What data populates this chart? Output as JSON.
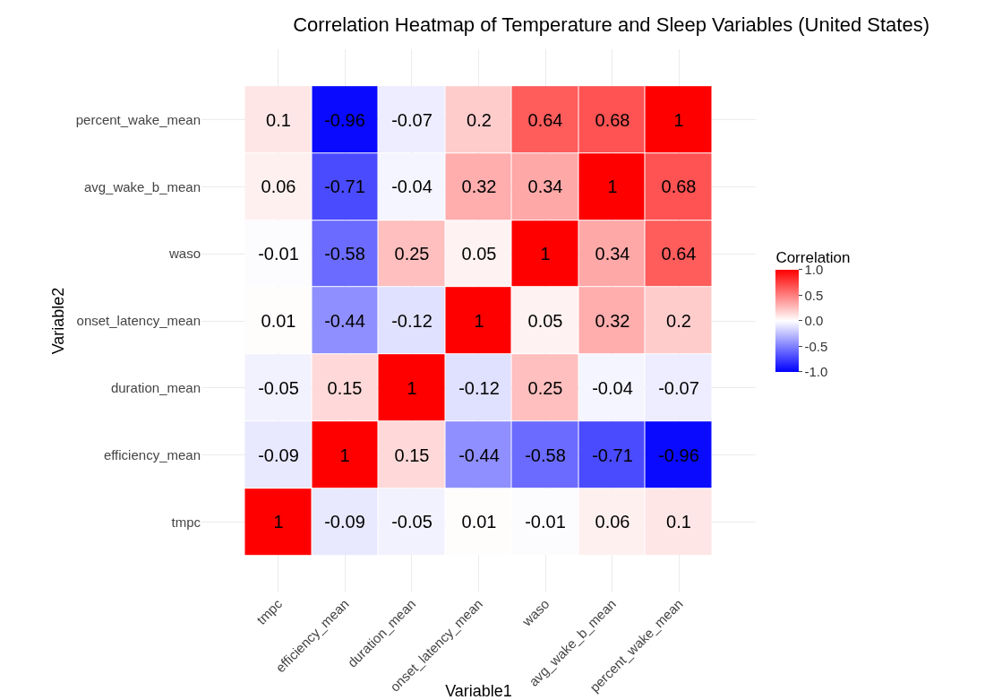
{
  "chart_data": {
    "type": "heatmap",
    "title": "Correlation Heatmap of Temperature and Sleep Variables (United States)",
    "xlabel": "Variable1",
    "ylabel": "Variable2",
    "clabel": "Correlation",
    "categories": [
      "tmpc",
      "efficiency_mean",
      "duration_mean",
      "onset_latency_mean",
      "waso",
      "avg_wake_b_mean",
      "percent_wake_mean"
    ],
    "y_categories": [
      "percent_wake_mean",
      "avg_wake_b_mean",
      "waso",
      "onset_latency_mean",
      "duration_mean",
      "efficiency_mean",
      "tmpc"
    ],
    "cells": [
      [
        0.1,
        -0.96,
        -0.07,
        0.2,
        0.64,
        0.68,
        1
      ],
      [
        0.06,
        -0.71,
        -0.04,
        0.32,
        0.34,
        1,
        0.68
      ],
      [
        -0.01,
        -0.58,
        0.25,
        0.05,
        1,
        0.34,
        0.64
      ],
      [
        0.01,
        -0.44,
        -0.12,
        1,
        0.05,
        0.32,
        0.2
      ],
      [
        -0.05,
        0.15,
        1,
        -0.12,
        0.25,
        -0.04,
        -0.07
      ],
      [
        -0.09,
        1,
        0.15,
        -0.44,
        -0.58,
        -0.71,
        -0.96
      ],
      [
        1,
        -0.09,
        -0.05,
        0.01,
        -0.01,
        0.06,
        0.1
      ]
    ],
    "clim": [
      -1,
      1
    ],
    "cticks": [
      {
        "value": -1,
        "label": "-1.0"
      },
      {
        "value": -0.5,
        "label": "-0.5"
      },
      {
        "value": 0,
        "label": "0.0"
      },
      {
        "value": 0.5,
        "label": "0.5"
      },
      {
        "value": 1,
        "label": "1.0"
      }
    ],
    "data_labels": true,
    "grid": true
  }
}
